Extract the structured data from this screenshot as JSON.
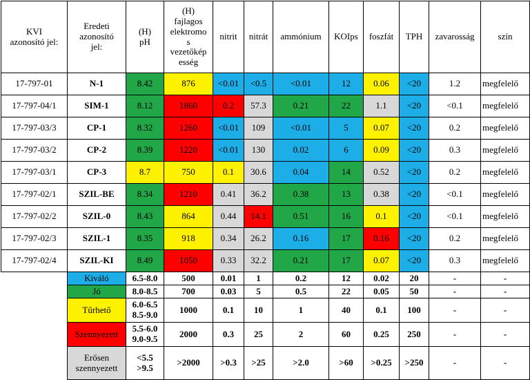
{
  "colors": {
    "Kiváló": "#1daee8",
    "Jó": "#22a748",
    "Tűrhető": "#fff200",
    "Szennyezett": "#ff0000",
    "Erősen szennyezett": "#d8d8d8"
  },
  "headers": [
    {
      "key": "kvi",
      "lines": [
        "KVI",
        "azonosító jel:"
      ]
    },
    {
      "key": "eredeti",
      "lines": [
        "Eredeti",
        "azonosító",
        "jel:"
      ]
    },
    {
      "key": "ph",
      "lines": [
        "(H)",
        "pH"
      ]
    },
    {
      "key": "ec",
      "lines": [
        "(H)",
        "fajlagos",
        "elektromo",
        "s",
        "vezetőkép",
        "esség"
      ]
    },
    {
      "key": "nitrit",
      "lines": [
        "nitrit"
      ]
    },
    {
      "key": "nitrat",
      "lines": [
        "nitrát"
      ]
    },
    {
      "key": "ammonium",
      "lines": [
        "ammónium"
      ]
    },
    {
      "key": "koips",
      "lines": [
        "KOIps"
      ]
    },
    {
      "key": "foszfat",
      "lines": [
        "foszfát"
      ]
    },
    {
      "key": "tph",
      "lines": [
        "TPH"
      ]
    },
    {
      "key": "zavarossag",
      "lines": [
        "zavarosság"
      ]
    },
    {
      "key": "szin",
      "lines": [
        "szín"
      ]
    }
  ],
  "rows": [
    {
      "kvi": "17-797-01",
      "eredeti": "N-1",
      "cells": [
        [
          "8.42",
          "green"
        ],
        [
          "876",
          "yellow"
        ],
        [
          "<0.01",
          "blue"
        ],
        [
          "<0.5",
          "blue"
        ],
        [
          "<0.01",
          "blue"
        ],
        [
          "12",
          "blue"
        ],
        [
          "0.06",
          "yellow"
        ],
        [
          "<20",
          "blue"
        ]
      ],
      "zavarossag": "1.2",
      "szin": "megfelelő"
    },
    {
      "kvi": "17-797-04/1",
      "eredeti": "SIM-1",
      "cells": [
        [
          "8.12",
          "green"
        ],
        [
          "1860",
          "red"
        ],
        [
          "0.2",
          "red"
        ],
        [
          "57.3",
          "gray"
        ],
        [
          "0.21",
          "green"
        ],
        [
          "22",
          "green"
        ],
        [
          "1.1",
          "gray"
        ],
        [
          "<20",
          "blue"
        ]
      ],
      "zavarossag": "<0.1",
      "szin": "megfelelő"
    },
    {
      "kvi": "17-797-03/3",
      "eredeti": "CP-1",
      "cells": [
        [
          "8.32",
          "green"
        ],
        [
          "1260",
          "red"
        ],
        [
          "<0.01",
          "blue"
        ],
        [
          "109",
          "gray"
        ],
        [
          "<0.01",
          "blue"
        ],
        [
          "5",
          "blue"
        ],
        [
          "0.07",
          "yellow"
        ],
        [
          "<20",
          "blue"
        ]
      ],
      "zavarossag": "0.2",
      "szin": "megfelelő"
    },
    {
      "kvi": "17-797-03/2",
      "eredeti": "CP-2",
      "cells": [
        [
          "8.39",
          "green"
        ],
        [
          "1220",
          "red"
        ],
        [
          "<0.01",
          "blue"
        ],
        [
          "130",
          "gray"
        ],
        [
          "0.02",
          "blue"
        ],
        [
          "6",
          "blue"
        ],
        [
          "0.09",
          "yellow"
        ],
        [
          "<20",
          "blue"
        ]
      ],
      "zavarossag": "0.3",
      "szin": "megfelelő"
    },
    {
      "kvi": "17-797-03/1",
      "eredeti": "CP-3",
      "cells": [
        [
          "8.7",
          "yellow"
        ],
        [
          "750",
          "yellow"
        ],
        [
          "0.1",
          "yellow"
        ],
        [
          "30.6",
          "gray"
        ],
        [
          "0.04",
          "blue"
        ],
        [
          "14",
          "green"
        ],
        [
          "0.52",
          "gray"
        ],
        [
          "<20",
          "blue"
        ]
      ],
      "zavarossag": "0.2",
      "szin": "megfelelő"
    },
    {
      "kvi": "17-797-02/1",
      "eredeti": "SZIL-BE",
      "cells": [
        [
          "8.34",
          "green"
        ],
        [
          "1210",
          "red"
        ],
        [
          "0.41",
          "gray"
        ],
        [
          "36.2",
          "gray"
        ],
        [
          "0.38",
          "green"
        ],
        [
          "13",
          "green"
        ],
        [
          "0.38",
          "gray"
        ],
        [
          "<20",
          "blue"
        ]
      ],
      "zavarossag": "<0.1",
      "szin": "megfelelő"
    },
    {
      "kvi": "17-797-02/2",
      "eredeti": "SZIL-0",
      "cells": [
        [
          "8.43",
          "green"
        ],
        [
          "864",
          "yellow"
        ],
        [
          "0.44",
          "gray"
        ],
        [
          "14.1",
          "red"
        ],
        [
          "0.51",
          "green"
        ],
        [
          "16",
          "green"
        ],
        [
          "0.1",
          "yellow"
        ],
        [
          "<20",
          "blue"
        ]
      ],
      "zavarossag": "<0.1",
      "szin": "megfelelő"
    },
    {
      "kvi": "17-797-02/3",
      "eredeti": "SZIL-1",
      "cells": [
        [
          "8.35",
          "green"
        ],
        [
          "918",
          "yellow"
        ],
        [
          "0.34",
          "gray"
        ],
        [
          "26.2",
          "gray"
        ],
        [
          "0.16",
          "blue"
        ],
        [
          "17",
          "green"
        ],
        [
          "0.16",
          "red"
        ],
        [
          "<20",
          "blue"
        ]
      ],
      "zavarossag": "0.2",
      "szin": "megfelelő"
    },
    {
      "kvi": "17-797-02/4",
      "eredeti": "SZIL-KI",
      "cells": [
        [
          "8.49",
          "green"
        ],
        [
          "1050",
          "red"
        ],
        [
          "0.33",
          "gray"
        ],
        [
          "32.2",
          "gray"
        ],
        [
          "0.21",
          "green"
        ],
        [
          "17",
          "green"
        ],
        [
          "0.07",
          "yellow"
        ],
        [
          "<20",
          "blue"
        ]
      ],
      "zavarossag": "0.3",
      "szin": "megfelelő"
    }
  ],
  "legend": [
    {
      "label": [
        "Kiváló"
      ],
      "color": "blue",
      "ph": [
        "6.5-8.0"
      ],
      "vals": [
        "500",
        "0.01",
        "1",
        "0.2",
        "12",
        "0.02",
        "20",
        "-",
        "-"
      ]
    },
    {
      "label": [
        "Jó"
      ],
      "color": "green",
      "ph": [
        "8.0-8.5"
      ],
      "vals": [
        "700",
        "0.03",
        "5",
        "0.5",
        "22",
        "0.05",
        "50",
        "-",
        "-"
      ]
    },
    {
      "label": [
        "Tűrhető"
      ],
      "color": "yellow",
      "ph": [
        "6.0-6.5",
        "8.5-9.0"
      ],
      "vals": [
        "1000",
        "0.1",
        "10",
        "1",
        "40",
        "0.1",
        "100",
        "-",
        "-"
      ]
    },
    {
      "label": [
        "Szennyezett"
      ],
      "color": "red",
      "ph": [
        "5.5-6.0",
        "9.0-9.5"
      ],
      "vals": [
        "2000",
        "0.3",
        "25",
        "2",
        "60",
        "0.25",
        "250",
        "-",
        "-"
      ]
    },
    {
      "label": [
        "Erősen",
        "szennyezett"
      ],
      "color": "gray",
      "ph": [
        "<5.5",
        ">9.5"
      ],
      "vals": [
        ">2000",
        ">0.3",
        ">25",
        ">2.0",
        ">60",
        ">0.25",
        ">250",
        "-",
        "-"
      ]
    }
  ]
}
